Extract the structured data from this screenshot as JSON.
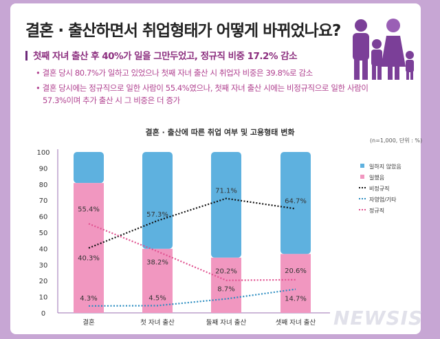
{
  "header": {
    "title": "결혼 · 출산하면서 취업형태가 어떻게 바뀌었나요?",
    "subheading": "첫째 자녀 출산 후 40%가 일을 그만두었고, 정규직 비중 17.2% 감소",
    "bullets": [
      "• 결혼 당시 80.7%가 일하고 있었으나 첫째 자녀 출산 시 취업자 비중은 39.8%로 감소",
      "• 결혼 당시에는 정규직으로 일한 사람이 55.4%였으나, 첫째 자녀 출산 시에는 비정규직으로 일한 사람이",
      "57.3%이며 추가 출산 시 그 비중은 더 증가"
    ],
    "illustration": "family-icon"
  },
  "watermark": "NEWSIS",
  "chart_data": {
    "type": "bar",
    "title": "결혼 · 출산에 따른 취업 여부 및 고용형태 변화",
    "note": "(n=1,000, 단위 : %)",
    "categories": [
      "결혼",
      "첫 자녀 출산",
      "둘째 자녀 출산",
      "셋째 자녀 출산"
    ],
    "ylim": [
      0,
      100
    ],
    "yticks": [
      0,
      10,
      20,
      30,
      40,
      50,
      60,
      70,
      80,
      90,
      100
    ],
    "legend_position": "right",
    "bar_series": [
      {
        "name": "일했음",
        "values": [
          80.7,
          39.8,
          34.3,
          36.6
        ],
        "color": "#f197c0"
      },
      {
        "name": "일하지 않았음",
        "values": [
          19.3,
          60.2,
          65.7,
          63.4
        ],
        "color": "#5eb1df"
      }
    ],
    "line_series": [
      {
        "name": "비정규직",
        "values": [
          40.3,
          57.3,
          71.1,
          64.7
        ],
        "labels": [
          "40.3%",
          "57.3%",
          "71.1%",
          "64.7%"
        ],
        "color": "#111111"
      },
      {
        "name": "자영업/기타",
        "values": [
          4.3,
          4.5,
          8.7,
          14.7
        ],
        "labels": [
          "4.3%",
          "4.5%",
          "8.7%",
          "14.7%"
        ],
        "color": "#2a8cc0"
      },
      {
        "name": "정규직",
        "values": [
          55.4,
          38.2,
          20.2,
          20.6
        ],
        "labels": [
          "55.4%",
          "38.2%",
          "20.2%",
          "20.6%"
        ],
        "color": "#e0508f"
      }
    ]
  }
}
